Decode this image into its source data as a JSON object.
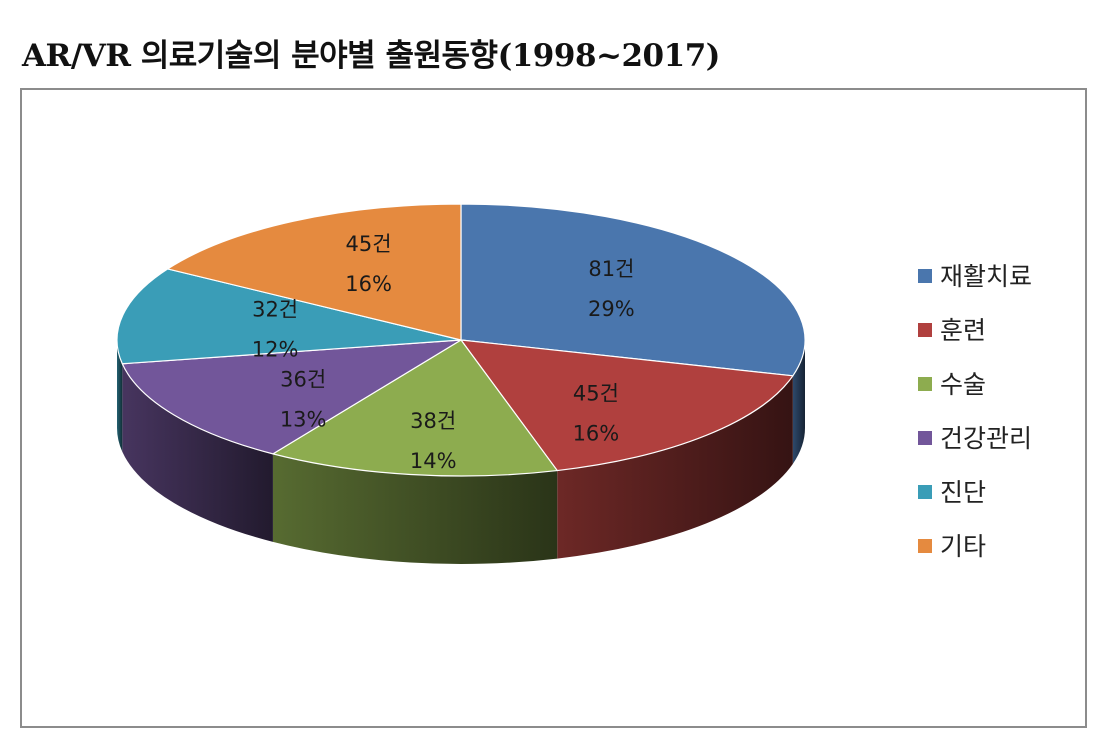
{
  "title": "AR/VR 의료기술의 분야별 출원동향(1998~2017)",
  "chart_data": {
    "type": "pie",
    "style": "3d",
    "title": "AR/VR 의료기술의 분야별 출원동향(1998~2017)",
    "legend_position": "right",
    "slices": [
      {
        "name": "재활치료",
        "value": 81,
        "count_label": "81건",
        "percent_label": "29%",
        "color": "#4a76ad"
      },
      {
        "name": "훈련",
        "value": 45,
        "count_label": "45건",
        "percent_label": "16%",
        "color": "#b0403e"
      },
      {
        "name": "수술",
        "value": 38,
        "count_label": "38건",
        "percent_label": "14%",
        "color": "#8dac4f"
      },
      {
        "name": "건강관리",
        "value": 36,
        "count_label": "36건",
        "percent_label": "13%",
        "color": "#72569a"
      },
      {
        "name": "진단",
        "value": 32,
        "count_label": "32건",
        "percent_label": "12%",
        "color": "#3a9db7"
      },
      {
        "name": "기타",
        "value": 45,
        "count_label": "45건",
        "percent_label": "16%",
        "color": "#e58a3f"
      }
    ]
  }
}
